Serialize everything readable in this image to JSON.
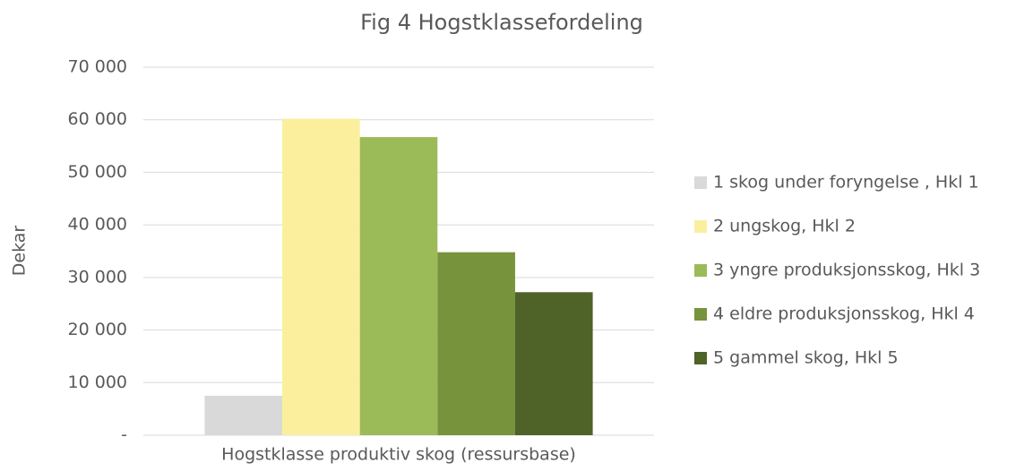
{
  "chart_data": {
    "type": "bar",
    "title": "Fig 4 Hogstklassefordeling",
    "ylabel": "Dekar",
    "categories": [
      "Hogstklasse produktiv skog (ressursbase)"
    ],
    "series": [
      {
        "name": "1 skog under foryngelse , Hkl 1",
        "color": "#d9d9d9",
        "values": [
          7500
        ]
      },
      {
        "name": "2 ungskog, Hkl 2",
        "color": "#fbef9e",
        "values": [
          60200
        ]
      },
      {
        "name": "3 yngre produksjonsskog, Hkl 3",
        "color": "#9bbb59",
        "values": [
          56700
        ]
      },
      {
        "name": "4 eldre produksjonsskog, Hkl 4",
        "color": "#77933c",
        "values": [
          34800
        ]
      },
      {
        "name": "5 gammel skog, Hkl 5",
        "color": "#4f6228",
        "values": [
          27200
        ]
      }
    ],
    "ylim": [
      0,
      70000
    ],
    "yticks": [
      {
        "value": 0,
        "label": "-"
      },
      {
        "value": 10000,
        "label": "10 000"
      },
      {
        "value": 20000,
        "label": "20 000"
      },
      {
        "value": 30000,
        "label": "30 000"
      },
      {
        "value": 40000,
        "label": "40 000"
      },
      {
        "value": 50000,
        "label": "50 000"
      },
      {
        "value": 60000,
        "label": "60 000"
      },
      {
        "value": 70000,
        "label": "70 000"
      }
    ],
    "grid": true,
    "legend": "right"
  }
}
